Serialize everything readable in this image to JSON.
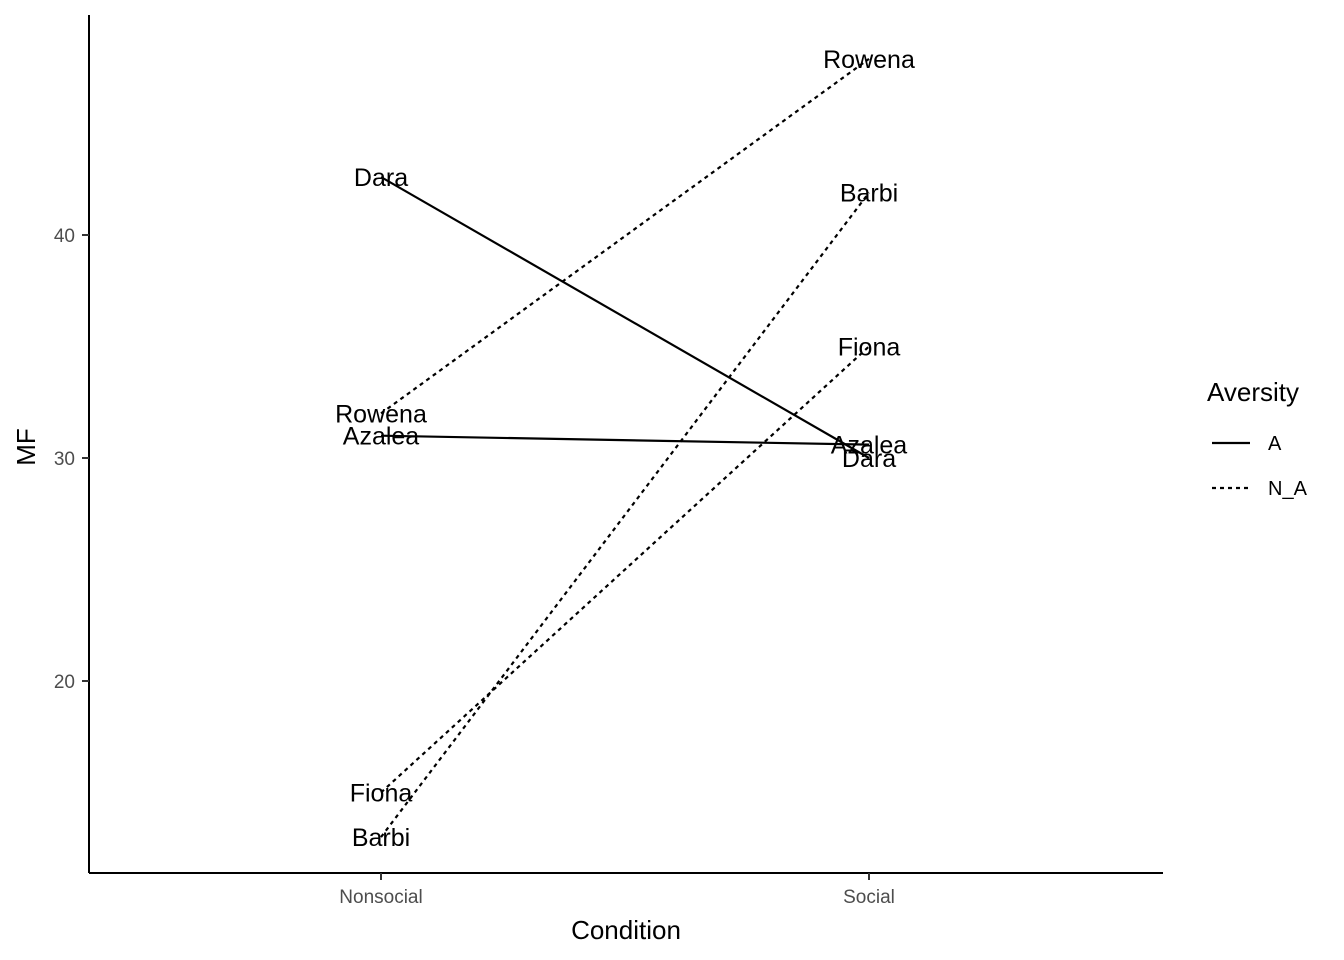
{
  "chart_data": {
    "type": "line",
    "categories": [
      "Nonsocial",
      "Social"
    ],
    "xlabel": "Condition",
    "ylabel": "MF",
    "ylim": [
      11.5,
      49
    ],
    "yticks": [
      20,
      30,
      40
    ],
    "grid": false,
    "legend": {
      "title": "Aversity",
      "placement": "right",
      "entries": [
        {
          "label": "A",
          "linetype": "solid"
        },
        {
          "label": "N_A",
          "linetype": "dashed"
        }
      ]
    },
    "series": [
      {
        "label": "Dara",
        "group": "A",
        "values": [
          42.6,
          30.0
        ]
      },
      {
        "label": "Azalea",
        "group": "A",
        "values": [
          31.0,
          30.6
        ]
      },
      {
        "label": "Rowena",
        "group": "N_A",
        "values": [
          32.0,
          47.9
        ]
      },
      {
        "label": "Barbi",
        "group": "N_A",
        "values": [
          13.0,
          41.9
        ]
      },
      {
        "label": "Fiona",
        "group": "N_A",
        "values": [
          15.0,
          35.0
        ]
      }
    ],
    "label_offsets": {
      "Nonsocial": {
        "Dara": 0,
        "Azalea": 0,
        "Rowena": 0,
        "Barbi": 0,
        "Fiona": 0
      },
      "Social": {
        "Dara": 0,
        "Azalea": 0,
        "Rowena": 0,
        "Barbi": 0,
        "Fiona": 0
      }
    }
  }
}
